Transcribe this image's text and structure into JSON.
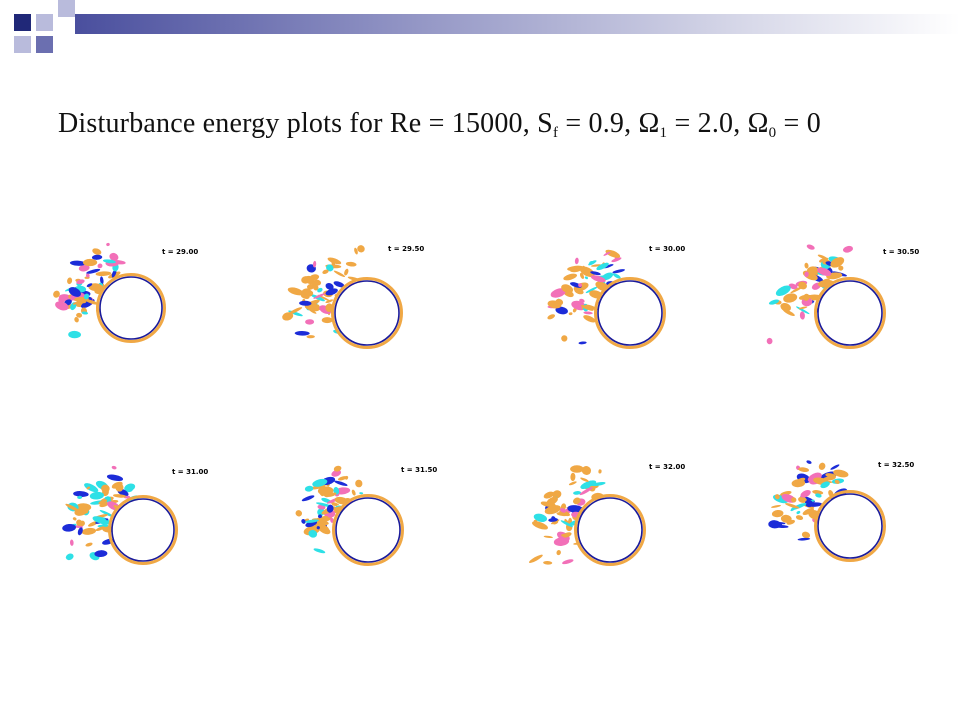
{
  "slide": {
    "title": {
      "prefix": "Disturbance energy plots for Re = 15000, S",
      "sub_f": "f",
      "mid1": " = 0.9, Ω",
      "sub_1": "1",
      "mid2": " = 2.0, Ω",
      "sub_0": "0",
      "suffix": " = 0"
    }
  },
  "panels": [
    {
      "time_label": "t = 29.00"
    },
    {
      "time_label": "t = 29.50"
    },
    {
      "time_label": "t = 30.00"
    },
    {
      "time_label": "t = 30.50"
    },
    {
      "time_label": "t = 31.00"
    },
    {
      "time_label": "t = 31.50"
    },
    {
      "time_label": "t = 32.00"
    },
    {
      "time_label": "t = 32.50"
    }
  ],
  "colors": {
    "header_square_dark": "#202878",
    "header_square_mid": "#6b6fb0",
    "header_square_light": "#b9bbdc",
    "blob_orange": "#f0a845",
    "blob_blue": "#1c2cd8",
    "blob_cyan": "#2ee0e6",
    "blob_pink": "#f270b8",
    "cylinder_outline": "#1a1a9a"
  }
}
